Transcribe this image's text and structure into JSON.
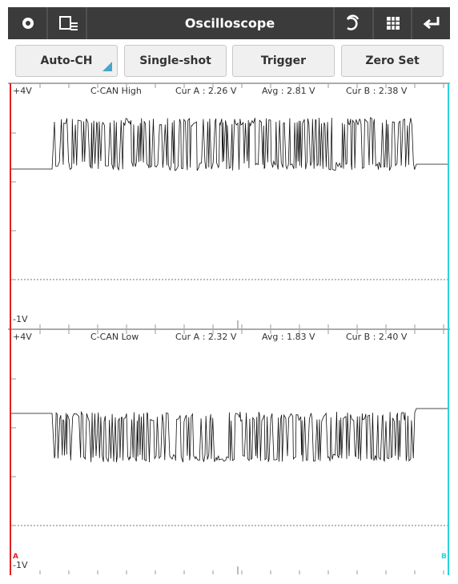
{
  "header": {
    "title": "Oscilloscope"
  },
  "buttons": [
    "Auto-CH",
    "Single-shot",
    "Trigger",
    "Zero Set"
  ],
  "channels": [
    {
      "top_label": "+4V",
      "bottom_label": "-1V",
      "name": "C-CAN High",
      "cur_a": "Cur A : 2.26 V",
      "avg": "Avg : 2.81 V",
      "cur_b": "Cur B : 2.38 V"
    },
    {
      "top_label": "+4V",
      "bottom_label": "-1V",
      "name": "C-CAN Low",
      "cur_a": "Cur A : 2.32 V",
      "avg": "Avg : 1.83 V",
      "cur_b": "Cur B : 2.40 V"
    }
  ],
  "cursor_a": "A",
  "cursor_b": "B"
}
